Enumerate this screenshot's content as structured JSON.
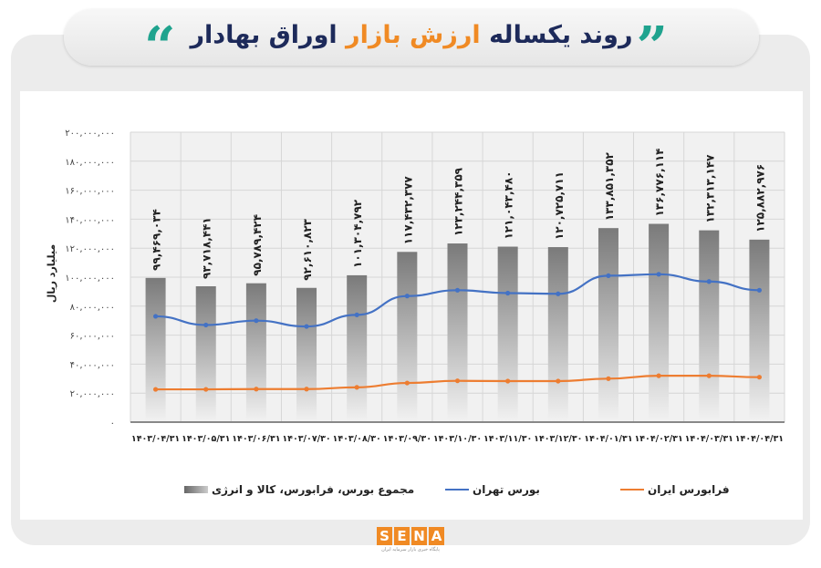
{
  "header": {
    "title_part1": "روند یکساله",
    "title_highlight": "ارزش بازار",
    "title_part2": "اوراق بهادار",
    "quote_left": "“",
    "quote_right": "”"
  },
  "colors": {
    "bars": "#808080",
    "tehran": "#4472c4",
    "farabourse": "#ed7d31",
    "accent": "#f08a24",
    "teal": "#1fa38e"
  },
  "chart_data": {
    "type": "bar",
    "ylabel": "میلیارد ریال",
    "ylim": [
      0,
      200000000
    ],
    "grid": true,
    "legend_placement": "bottom",
    "yticks": [
      "۰",
      "۲۰,۰۰۰,۰۰۰",
      "۴۰,۰۰۰,۰۰۰",
      "۶۰,۰۰۰,۰۰۰",
      "۸۰,۰۰۰,۰۰۰",
      "۱۰۰,۰۰۰,۰۰۰",
      "۱۲۰,۰۰۰,۰۰۰",
      "۱۴۰,۰۰۰,۰۰۰",
      "۱۶۰,۰۰۰,۰۰۰",
      "۱۸۰,۰۰۰,۰۰۰",
      "۲۰۰,۰۰۰,۰۰۰"
    ],
    "categories": [
      "۱۴۰۳/۰۴/۳۱",
      "۱۴۰۳/۰۵/۳۱",
      "۱۴۰۳/۰۶/۳۱",
      "۱۴۰۳/۰۷/۳۰",
      "۱۴۰۳/۰۸/۳۰",
      "۱۴۰۳/۰۹/۳۰",
      "۱۴۰۳/۱۰/۳۰",
      "۱۴۰۳/۱۱/۳۰",
      "۱۴۰۳/۱۲/۳۰",
      "۱۴۰۴/۰۱/۳۱",
      "۱۴۰۴/۰۲/۳۱",
      "۱۴۰۴/۰۳/۳۱",
      "۱۴۰۴/۰۴/۳۱"
    ],
    "series": [
      {
        "name": "مجموع بورس، فرابورس، کالا و انرژی",
        "type": "bar",
        "values": [
          99469034,
          93718441,
          95789424,
          92610823,
          101304792,
          117432377,
          123244359,
          121043480,
          120725711,
          133851352,
          136776114,
          132313147,
          125882976
        ],
        "labels": [
          "۹۹,۴۶۹,۰۳۴",
          "۹۳,۷۱۸,۴۴۱",
          "۹۵,۷۸۹,۴۲۴",
          "۹۲,۶۱۰,۸۲۳",
          "۱۰۱,۳۰۴,۷۹۲",
          "۱۱۷,۴۳۲,۳۷۷",
          "۱۲۳,۲۴۴,۳۵۹",
          "۱۲۱,۰۴۳,۴۸۰",
          "۱۲۰,۷۲۵,۷۱۱",
          "۱۳۳,۸۵۱,۳۵۲",
          "۱۳۶,۷۷۶,۱۱۴",
          "۱۳۲,۳۱۳,۱۴۷",
          "۱۲۵,۸۸۲,۹۷۶"
        ]
      },
      {
        "name": "بورس تهران",
        "type": "line",
        "values": [
          73000000,
          67000000,
          70000000,
          66000000,
          74000000,
          87000000,
          91000000,
          89000000,
          88500000,
          101000000,
          102000000,
          97000000,
          91000000
        ]
      },
      {
        "name": "فرابورس ایران",
        "type": "line",
        "values": [
          22600000,
          22600000,
          22800000,
          22800000,
          24000000,
          27000000,
          28500000,
          28300000,
          28300000,
          30000000,
          32000000,
          32000000,
          31000000
        ]
      }
    ]
  },
  "logo": {
    "text": "SENA",
    "subtitle": "پایگاه خبری بازار سرمایه ایران"
  }
}
